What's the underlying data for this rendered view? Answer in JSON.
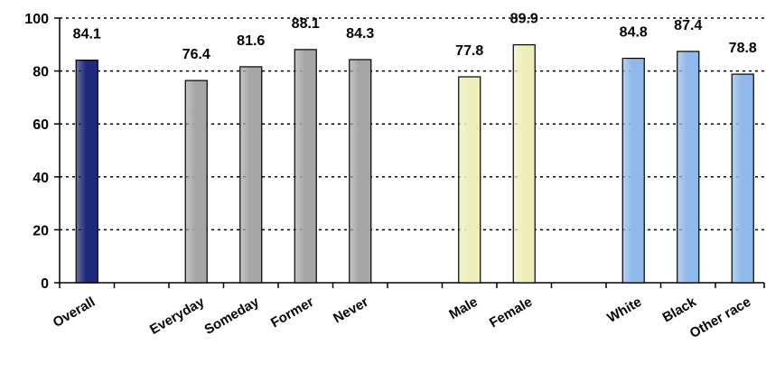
{
  "chart_data": {
    "type": "bar",
    "title": "",
    "xlabel": "",
    "ylabel": "",
    "ylim": [
      0,
      100
    ],
    "yticks": [
      0,
      20,
      40,
      60,
      80,
      100
    ],
    "grid": "horizontal dotted",
    "legend": "none",
    "categories": [
      "Overall",
      "Everyday",
      "Someday",
      "Former",
      "Never",
      "Male",
      "Female",
      "White",
      "Black",
      "Other race"
    ],
    "values": [
      84.1,
      76.4,
      81.6,
      88.1,
      84.3,
      77.8,
      89.9,
      84.8,
      87.4,
      78.8
    ],
    "value_labels": [
      "84.1",
      "76.4",
      "81.6",
      "88.1",
      "84.3",
      "77.8",
      "89.9",
      "84.8",
      "87.4",
      "78.8"
    ],
    "groups": [
      {
        "categories": [
          "Overall"
        ],
        "color": "#1f2a7a"
      },
      {
        "categories": [
          "Everyday",
          "Someday",
          "Former",
          "Never"
        ],
        "color": "#a6a6a6"
      },
      {
        "categories": [
          "Male",
          "Female"
        ],
        "color": "#eeeebb"
      },
      {
        "categories": [
          "White",
          "Black",
          "Other race"
        ],
        "color": "#8fb9ea"
      }
    ]
  }
}
